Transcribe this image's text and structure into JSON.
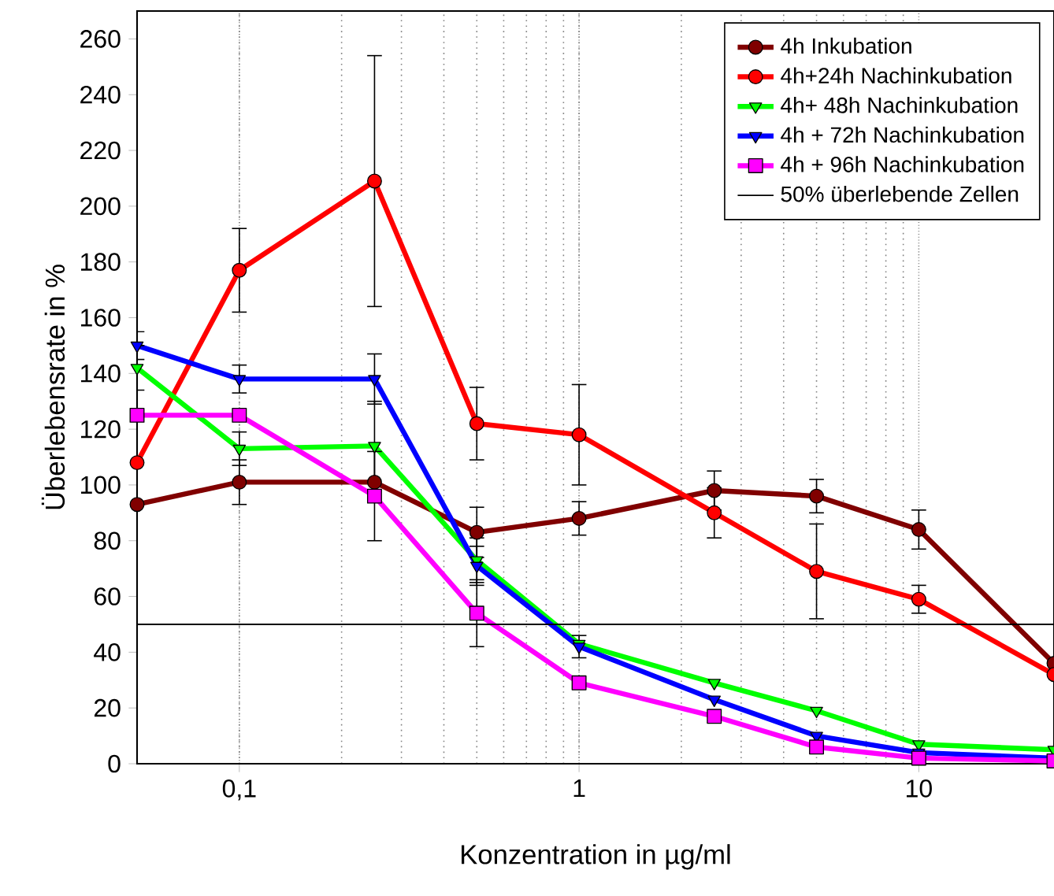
{
  "chart_data": {
    "type": "line",
    "xlabel": "Konzentration in µg/ml",
    "ylabel": "Überlebensrate in %",
    "log": "x",
    "grid": "x",
    "legend": "top right",
    "line_style": "solid",
    "xlim": [
      0.05,
      25
    ],
    "ylim": [
      0,
      270
    ],
    "xticks": [
      {
        "value": 0.1,
        "label": "0,1"
      },
      1,
      10
    ],
    "yticks": [
      0,
      20,
      40,
      60,
      80,
      100,
      120,
      140,
      160,
      180,
      200,
      220,
      240,
      260
    ],
    "x": [
      0.05,
      0.1,
      0.25,
      0.5,
      1,
      2.5,
      5,
      10,
      25
    ],
    "series": [
      {
        "name": "4h Inkubation",
        "color": "#800000",
        "marker": "circle",
        "values": [
          93,
          101,
          101,
          83,
          88,
          98,
          96,
          84,
          36
        ],
        "errors": [
          null,
          8,
          null,
          9,
          6,
          7,
          6,
          7,
          null
        ]
      },
      {
        "name": "4h+24h Nachinkubation",
        "color": "#ff0000",
        "marker": "circle",
        "values": [
          108,
          177,
          209,
          122,
          118,
          90,
          69,
          59,
          32
        ],
        "errors": [
          null,
          15,
          45,
          13,
          18,
          9,
          17,
          5,
          null
        ]
      },
      {
        "name": "4h+ 48h Nachinkubation",
        "color": "#00ff00",
        "marker": "triangle",
        "values": [
          142,
          113,
          114,
          73,
          43,
          29,
          19,
          7,
          5
        ],
        "errors": [
          8,
          6,
          16,
          8,
          null,
          null,
          null,
          null,
          null
        ]
      },
      {
        "name": "4h + 72h Nachinkubation",
        "color": "#0000ff",
        "marker": "triangle",
        "values": [
          150,
          138,
          138,
          71,
          42,
          23,
          10,
          4,
          2
        ],
        "errors": [
          5,
          5,
          9,
          7,
          4,
          null,
          null,
          null,
          null
        ]
      },
      {
        "name": "4h + 96h Nachinkubation",
        "color": "#ff00ff",
        "marker": "square",
        "values": [
          125,
          125,
          96,
          54,
          29,
          17,
          6,
          2,
          1
        ],
        "errors": [
          null,
          null,
          16,
          12,
          null,
          null,
          null,
          null,
          null
        ]
      }
    ],
    "ref_lines": [
      {
        "axis": "y",
        "value": 50,
        "label": "50% überlebende Zellen",
        "color": "#000000"
      }
    ]
  }
}
